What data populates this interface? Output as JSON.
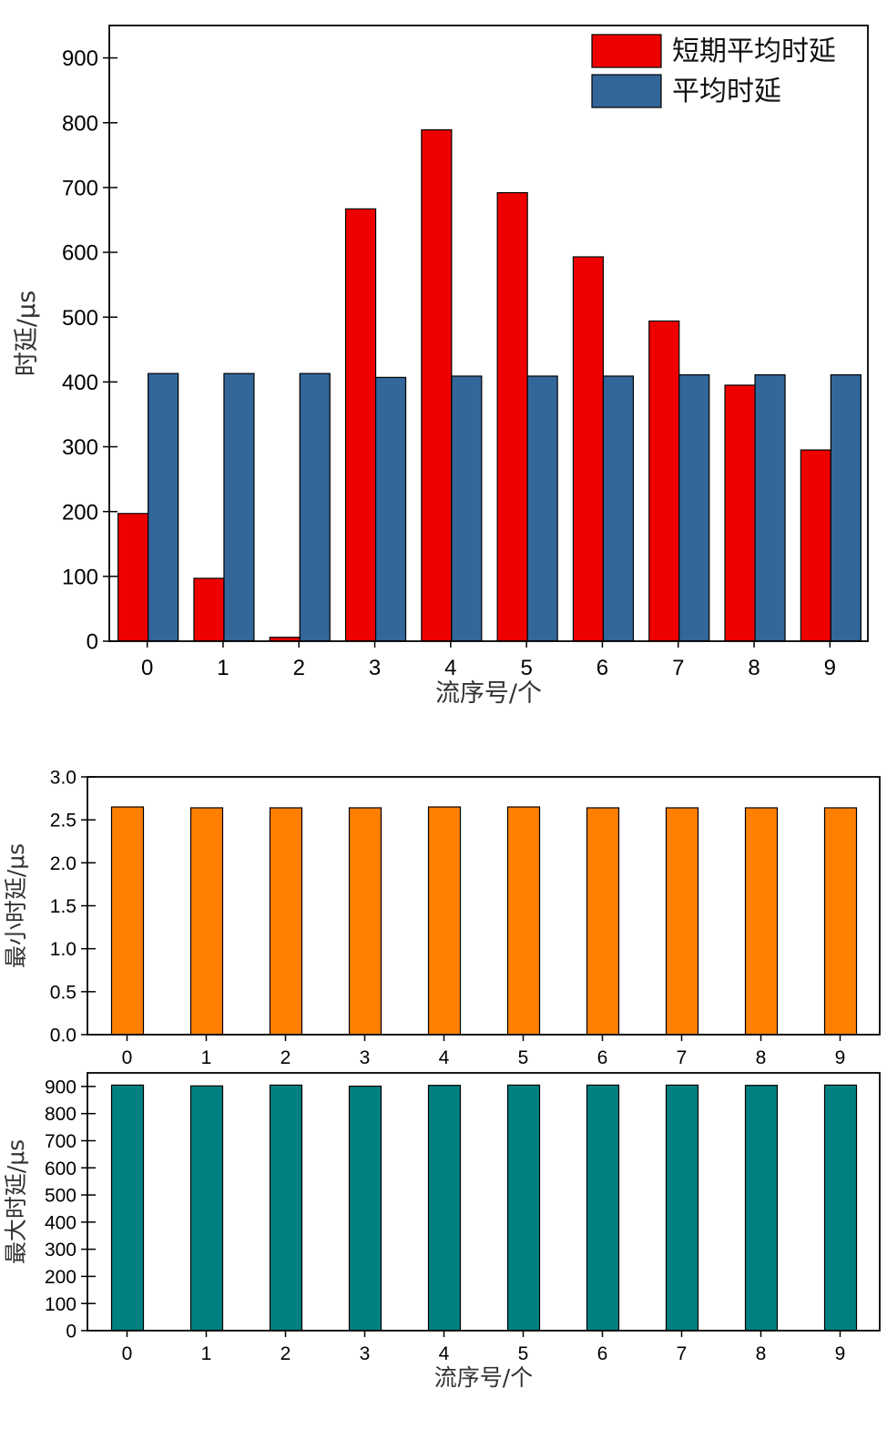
{
  "chart_data": [
    {
      "type": "bar",
      "categories": [
        "0",
        "1",
        "2",
        "3",
        "4",
        "5",
        "6",
        "7",
        "8",
        "9"
      ],
      "series": [
        {
          "name": "短期平均时延",
          "color": "#ee0000",
          "values": [
            197,
            97,
            6,
            667,
            789,
            692,
            593,
            494,
            395,
            295
          ]
        },
        {
          "name": "平均时延",
          "color": "#336699",
          "values": [
            413,
            413,
            413,
            407,
            409,
            409,
            409,
            411,
            411,
            411
          ]
        }
      ],
      "xlabel": "流序号/个",
      "ylabel": "时延/μs",
      "ylim": [
        0,
        950
      ],
      "yticks": [
        0,
        100,
        200,
        300,
        400,
        500,
        600,
        700,
        800,
        900
      ],
      "legend": "top-right",
      "grid": false
    },
    {
      "type": "bar",
      "categories": [
        "0",
        "1",
        "2",
        "3",
        "4",
        "5",
        "6",
        "7",
        "8",
        "9"
      ],
      "series": [
        {
          "color": "#ff8000",
          "values": [
            2.65,
            2.64,
            2.64,
            2.64,
            2.65,
            2.65,
            2.64,
            2.64,
            2.64,
            2.64
          ]
        }
      ],
      "xlabel": "",
      "ylabel": "最小时延/μs",
      "ylim": [
        0,
        3.0
      ],
      "yticks": [
        "0.0",
        "0.5",
        "1.0",
        "1.5",
        "2.0",
        "2.5",
        "3.0"
      ],
      "grid": false
    },
    {
      "type": "bar",
      "categories": [
        "0",
        "1",
        "2",
        "3",
        "4",
        "5",
        "6",
        "7",
        "8",
        "9"
      ],
      "series": [
        {
          "color": "#008080",
          "values": [
            905,
            902,
            905,
            901,
            904,
            905,
            905,
            905,
            904,
            905
          ]
        }
      ],
      "xlabel": "流序号/个",
      "ylabel": "最大时延/μs",
      "ylim": [
        0,
        950
      ],
      "yticks": [
        0,
        100,
        200,
        300,
        400,
        500,
        600,
        700,
        800,
        900
      ],
      "grid": false
    }
  ]
}
